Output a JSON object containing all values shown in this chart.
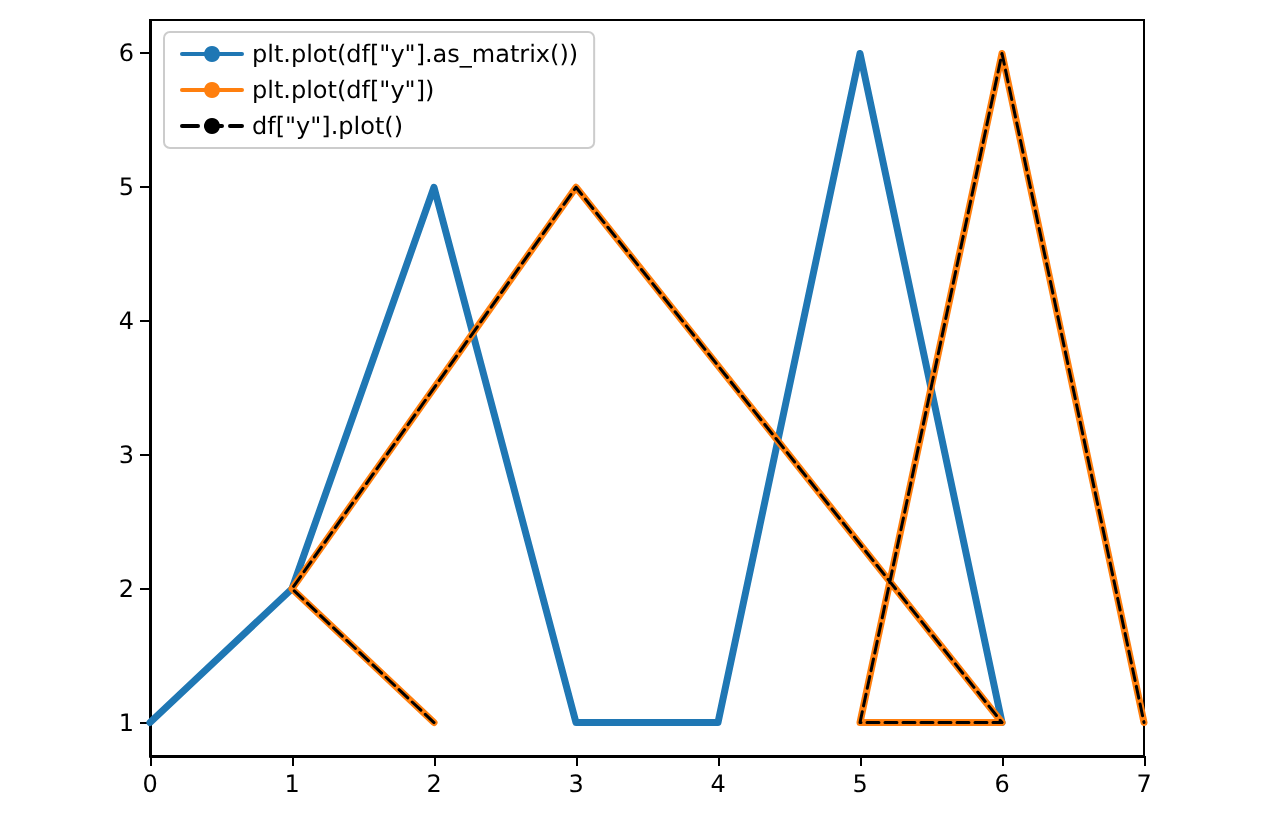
{
  "chart_data": {
    "type": "line",
    "xlim": [
      0,
      7
    ],
    "xticks": [
      0,
      1,
      2,
      3,
      4,
      5,
      6,
      7
    ],
    "ylim": [
      0.75,
      6.25
    ],
    "yticks": [
      1,
      2,
      3,
      4,
      5,
      6
    ],
    "grid": false,
    "legend": "top left",
    "marker": "none",
    "series": [
      {
        "name": "plt.plot(df[\"y\"].as_matrix())",
        "color": "#1f77b4",
        "line_style": "solid",
        "x": [
          0,
          1,
          2,
          3,
          4,
          5,
          6
        ],
        "values": [
          1,
          2,
          5,
          1,
          1,
          6,
          1
        ]
      },
      {
        "name": "plt.plot(df[\"y\"])",
        "color": "#ff7f0e",
        "line_style": "solid",
        "x": [
          2,
          1,
          3,
          6,
          5,
          6,
          7
        ],
        "values": [
          1,
          2,
          5,
          1,
          1,
          6,
          1
        ]
      },
      {
        "name": "df[\"y\"].plot()",
        "color": "#000000",
        "line_style": "dashed",
        "x": [
          2,
          1,
          3,
          6,
          5,
          6,
          7
        ],
        "values": [
          1,
          2,
          5,
          1,
          1,
          6,
          1
        ]
      }
    ]
  }
}
